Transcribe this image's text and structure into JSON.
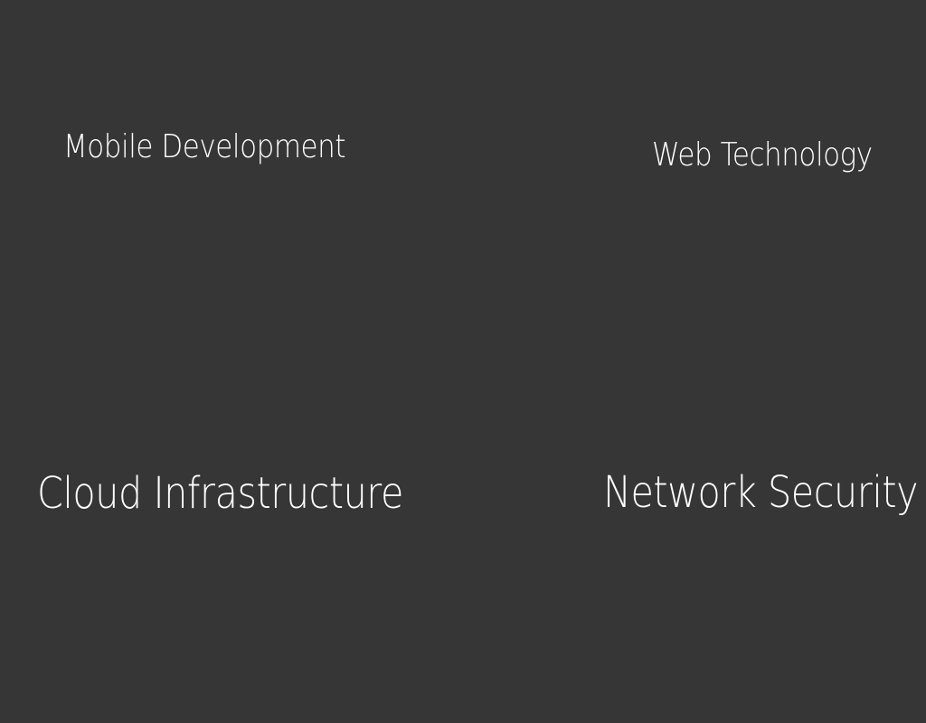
{
  "page": {
    "background_color": "#363636",
    "text_color": "#ffffff"
  },
  "topics": [
    {
      "label": "Mobile Development"
    },
    {
      "label": "Web Technology"
    },
    {
      "label": "Cloud Infrastructure"
    },
    {
      "label": "Network Security"
    }
  ]
}
